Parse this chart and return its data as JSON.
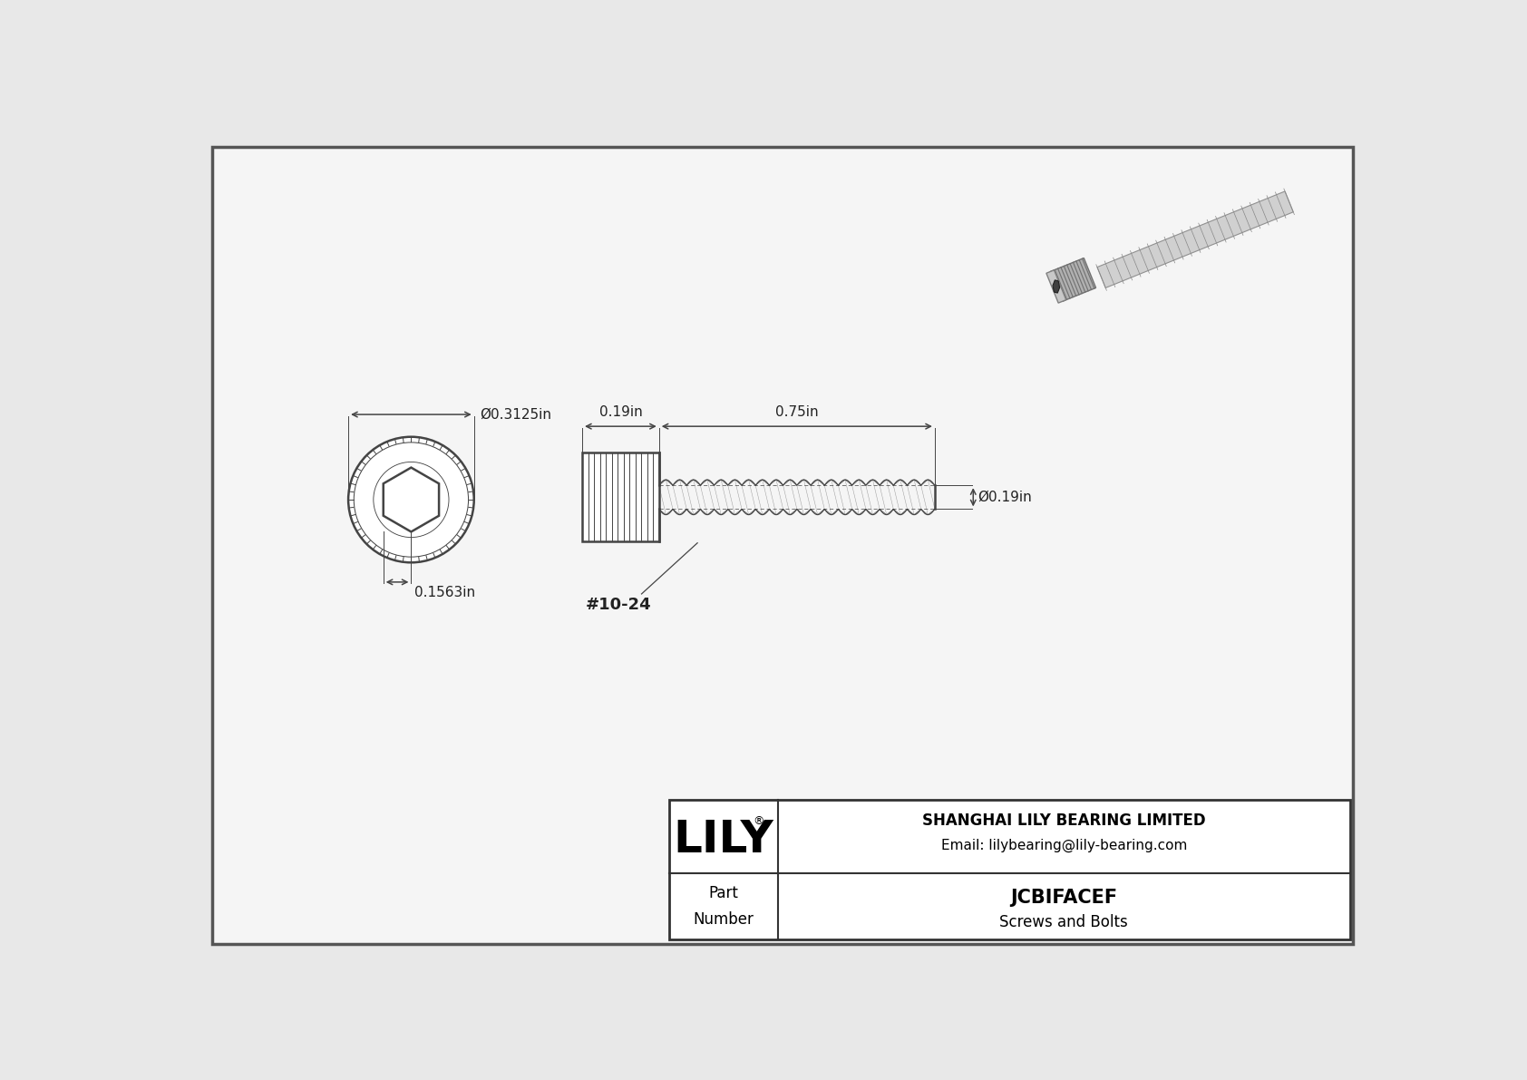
{
  "bg_color": "#e8e8e8",
  "inner_bg": "#f5f5f5",
  "border_color": "#333333",
  "line_color": "#444444",
  "text_color": "#222222",
  "title_company": "SHANGHAI LILY BEARING LIMITED",
  "title_email": "Email: lilybearing@lily-bearing.com",
  "part_number": "JCBIFACEF",
  "part_category": "Screws and Bolts",
  "part_label": "Part\nNumber",
  "dim_diameter_head": "Ø0.3125in",
  "dim_socket_depth": "0.1563in",
  "dim_head_length": "0.19in",
  "dim_shank_length": "0.75in",
  "dim_shank_dia": "Ø0.19in",
  "thread_label": "#10-24",
  "logo_text": "LILY",
  "logo_reg": "®"
}
